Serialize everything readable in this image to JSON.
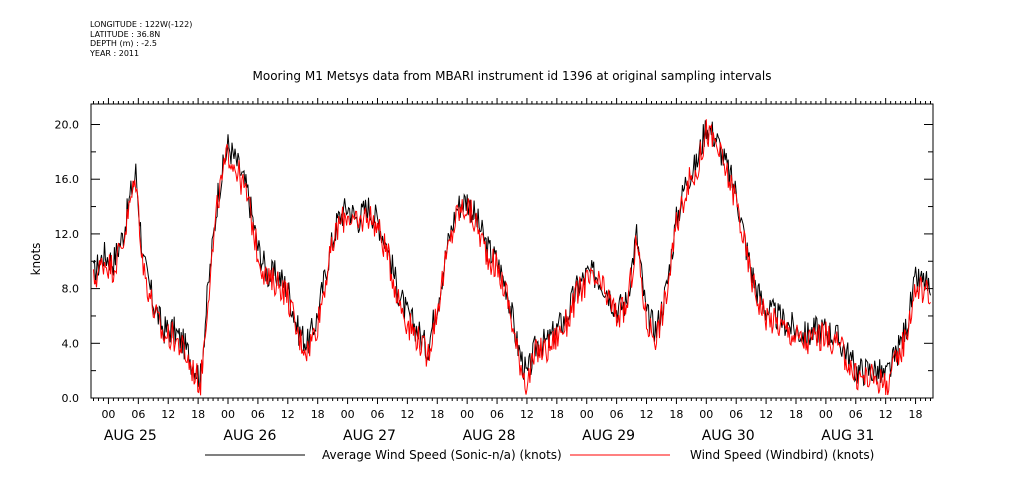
{
  "meta": {
    "longitude": "LONGITUDE : 122W(-122)",
    "latitude": "LATITUDE : 36.8N",
    "depth": "DEPTH (m) : -2.5",
    "year": "YEAR : 2011"
  },
  "chart_data": {
    "type": "line",
    "title": "Mooring M1 Metsys data from MBARI instrument id 1396 at original sampling intervals",
    "xlabel": "",
    "ylabel": "knots",
    "ylim": [
      0,
      21.5
    ],
    "xlim_hours": [
      -3.5,
      165.5
    ],
    "y_ticks": [
      "0.0",
      "4.0",
      "8.0",
      "12.0",
      "16.0",
      "20.0"
    ],
    "x_hour_ticks": [
      "00",
      "06",
      "12",
      "18",
      "00",
      "06",
      "12",
      "18",
      "00",
      "06",
      "12",
      "18",
      "00",
      "06",
      "12",
      "18",
      "00",
      "06",
      "12",
      "18",
      "00",
      "06",
      "12",
      "18",
      "00",
      "06",
      "12",
      "18"
    ],
    "x_day_labels": [
      "AUG 25",
      "AUG 26",
      "AUG 27",
      "AUG 28",
      "AUG 29",
      "AUG 30",
      "AUG 31"
    ],
    "grid": false,
    "legend_position": "bottom",
    "series": [
      {
        "name": "Average Wind Speed (Sonic-n/a) (knots)",
        "color": "#000000",
        "x_hours": [
          -3,
          -1,
          1,
          3,
          4.5,
          5.5,
          7,
          9,
          11,
          13,
          15,
          17,
          18.5,
          20,
          22,
          24,
          26,
          28,
          30,
          32,
          34,
          36,
          38,
          40,
          42,
          44,
          46,
          48,
          50,
          52,
          54,
          56,
          58,
          60,
          62,
          64,
          66,
          68,
          70,
          72,
          74,
          76,
          78,
          80,
          82,
          84,
          86,
          88,
          90,
          92,
          94,
          96,
          98,
          100,
          102,
          104,
          106,
          108,
          110,
          112,
          114,
          116,
          118,
          120,
          122,
          124,
          126,
          128,
          130,
          132,
          134,
          136,
          138,
          140,
          142,
          144,
          146,
          148,
          150,
          152,
          154,
          156,
          158,
          160,
          162,
          164,
          165
        ],
        "values": [
          9.0,
          10.5,
          10.0,
          12.0,
          15.0,
          16.5,
          10.0,
          7.0,
          5.0,
          5.0,
          4.0,
          2.5,
          1.5,
          8.0,
          15.0,
          18.5,
          17.0,
          15.0,
          11.0,
          9.0,
          9.0,
          8.0,
          5.0,
          4.0,
          6.0,
          10.0,
          13.0,
          14.0,
          13.0,
          14.0,
          13.0,
          11.0,
          8.0,
          6.0,
          5.0,
          3.5,
          7.0,
          11.0,
          14.0,
          14.5,
          13.0,
          11.0,
          10.0,
          8.0,
          4.0,
          1.5,
          4.0,
          4.0,
          5.0,
          6.0,
          8.0,
          9.0,
          9.0,
          8.0,
          6.5,
          7.0,
          12.0,
          6.0,
          5.0,
          8.0,
          13.0,
          16.0,
          17.0,
          20.0,
          19.0,
          17.0,
          15.0,
          11.0,
          8.0,
          6.5,
          6.0,
          5.5,
          5.0,
          4.5,
          5.0,
          5.0,
          4.5,
          3.5,
          2.0,
          2.0,
          2.0,
          1.5,
          3.0,
          5.0,
          8.5,
          8.5,
          7.5
        ]
      },
      {
        "name": "Wind Speed (Windbird) (knots)",
        "color": "#ff0000",
        "x_hours": [
          -3,
          -1,
          1,
          3,
          4.5,
          5.5,
          7,
          9,
          11,
          13,
          15,
          17,
          18.5,
          20,
          22,
          24,
          26,
          28,
          30,
          32,
          34,
          36,
          38,
          40,
          42,
          44,
          46,
          48,
          50,
          52,
          54,
          56,
          58,
          60,
          62,
          64,
          66,
          68,
          70,
          72,
          74,
          76,
          78,
          80,
          82,
          84,
          86,
          88,
          90,
          92,
          94,
          96,
          98,
          100,
          102,
          104,
          106,
          108,
          110,
          112,
          114,
          116,
          118,
          120,
          122,
          124,
          126,
          128,
          130,
          132,
          134,
          136,
          138,
          140,
          142,
          144,
          146,
          148,
          150,
          152,
          154,
          156,
          158,
          160,
          162,
          164,
          165
        ],
        "values": [
          8.5,
          10.0,
          9.5,
          11.5,
          14.5,
          16.0,
          9.5,
          6.5,
          4.5,
          4.5,
          3.5,
          2.0,
          1.0,
          7.5,
          14.5,
          18.0,
          16.5,
          14.5,
          10.5,
          8.5,
          8.5,
          7.5,
          4.5,
          3.5,
          5.5,
          9.5,
          12.5,
          13.5,
          12.5,
          13.5,
          12.5,
          10.5,
          7.5,
          5.5,
          4.5,
          3.0,
          6.5,
          10.5,
          13.5,
          14.0,
          12.5,
          10.5,
          9.5,
          7.5,
          3.5,
          1.0,
          3.5,
          3.5,
          4.5,
          5.5,
          7.5,
          8.5,
          8.5,
          7.5,
          6.0,
          6.5,
          11.5,
          5.5,
          4.5,
          7.5,
          12.5,
          15.5,
          16.5,
          19.5,
          18.5,
          16.5,
          14.5,
          10.5,
          7.5,
          6.0,
          5.5,
          5.0,
          4.5,
          4.0,
          4.5,
          4.5,
          4.0,
          3.0,
          1.5,
          1.5,
          1.5,
          1.0,
          2.5,
          4.5,
          8.0,
          8.0,
          7.0
        ]
      }
    ]
  }
}
